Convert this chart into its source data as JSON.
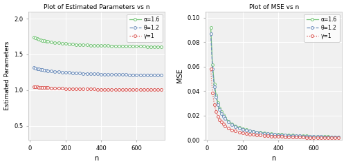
{
  "alpha": 1.6,
  "theta": 1.2,
  "gamma": 1.0,
  "n_values": [
    20,
    30,
    40,
    50,
    60,
    70,
    80,
    90,
    100,
    120,
    140,
    160,
    180,
    200,
    220,
    240,
    260,
    280,
    300,
    320,
    340,
    360,
    380,
    400,
    420,
    440,
    460,
    480,
    500,
    520,
    540,
    560,
    580,
    600,
    620,
    640,
    660,
    680,
    700,
    720,
    740
  ],
  "color_alpha": "#74c476",
  "color_theta": "#6b8cba",
  "color_gamma": "#d9534f",
  "left_title": "Plot of Estimated Parameters vs n",
  "right_title": "Plot of MSE vs n",
  "left_ylabel": "Estimated Parameters",
  "right_ylabel": "MSE",
  "xlabel": "n",
  "left_ylim": [
    0.3,
    2.1
  ],
  "right_ylim": [
    0.0,
    0.105
  ],
  "left_yticks": [
    0.5,
    1.0,
    1.5,
    2.0
  ],
  "right_yticks": [
    0.0,
    0.02,
    0.04,
    0.06,
    0.08,
    0.1
  ],
  "xticks": [
    0,
    200,
    400,
    600
  ],
  "left_xlim": [
    -10,
    760
  ],
  "right_xlim": [
    -10,
    760
  ],
  "bg_color": "#f0f0f0",
  "legend_alpha": "α=1.6",
  "legend_theta": "θ=1.2",
  "legend_gamma": "γ=1"
}
